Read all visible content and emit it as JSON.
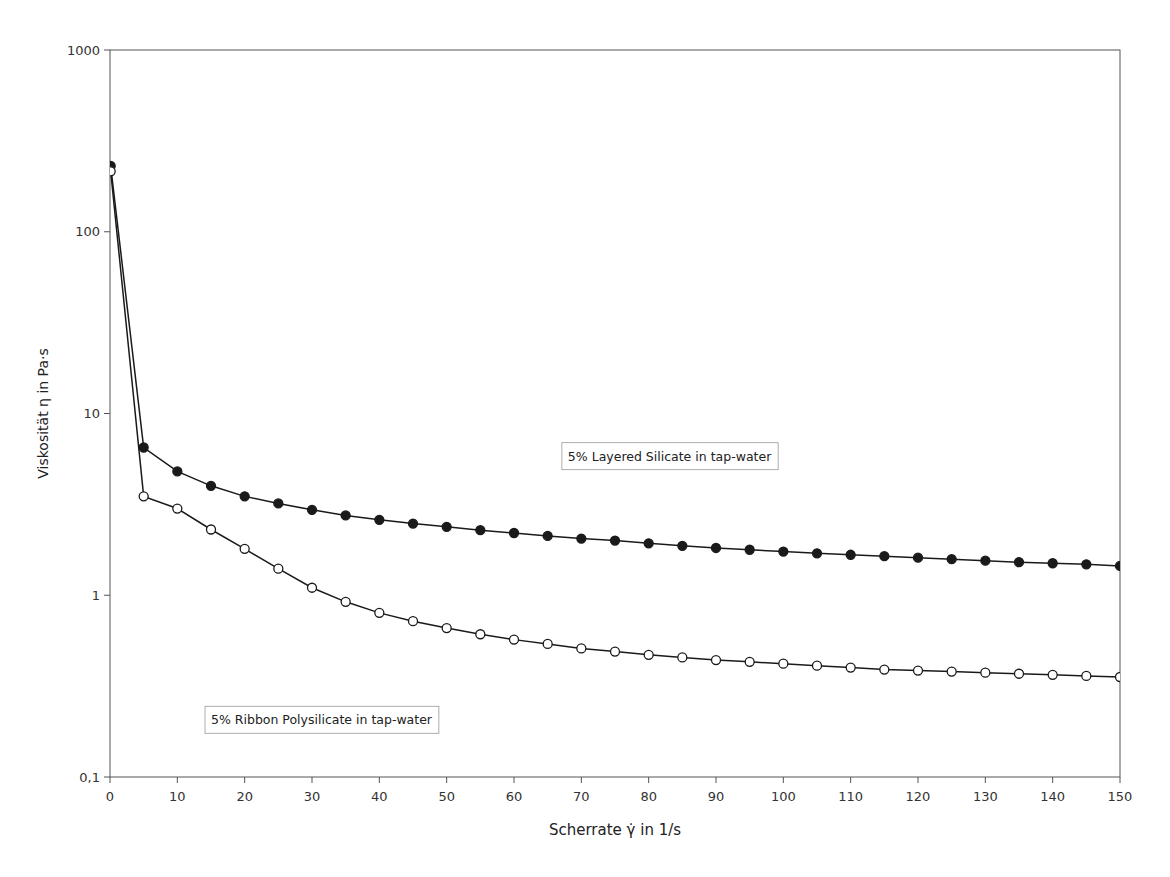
{
  "chart_data": {
    "type": "line",
    "x_label": "Scherrate γ̇ in 1/s",
    "y_label": "Viskosität η in Pa·s",
    "log": "y",
    "grid": false,
    "x": [
      0.1,
      5,
      10,
      15,
      20,
      25,
      30,
      35,
      40,
      45,
      50,
      55,
      60,
      65,
      70,
      75,
      80,
      85,
      90,
      95,
      100,
      105,
      110,
      115,
      120,
      125,
      130,
      135,
      140,
      145,
      150
    ],
    "series": [
      {
        "color": "#1a1a1a",
        "marker": "circle",
        "values": [
          230,
          6.5,
          4.8,
          4.0,
          3.5,
          3.2,
          2.95,
          2.75,
          2.6,
          2.48,
          2.38,
          2.28,
          2.2,
          2.12,
          2.05,
          2.0,
          1.93,
          1.87,
          1.82,
          1.78,
          1.74,
          1.7,
          1.67,
          1.64,
          1.61,
          1.58,
          1.55,
          1.52,
          1.5,
          1.48,
          1.45
        ]
      },
      {
        "color": "#1a1a1a",
        "marker": "circle-open",
        "values": [
          215,
          3.5,
          3.0,
          2.3,
          1.8,
          1.4,
          1.1,
          0.92,
          0.8,
          0.72,
          0.66,
          0.61,
          0.57,
          0.54,
          0.51,
          0.49,
          0.47,
          0.455,
          0.44,
          0.43,
          0.42,
          0.41,
          0.4,
          0.39,
          0.385,
          0.38,
          0.375,
          0.37,
          0.365,
          0.36,
          0.355
        ]
      }
    ],
    "annotations": [
      {
        "text": "5% Layered Silicate in tap-water",
        "x": 68,
        "y": 5.5
      },
      {
        "text": "5% Ribbon Polysilicate in tap-water",
        "x": 15,
        "y": 0.195
      }
    ],
    "xlim": [
      0,
      150
    ],
    "ylim": [
      0.1,
      1000
    ],
    "xticks": [
      0,
      10,
      20,
      30,
      40,
      50,
      60,
      70,
      80,
      90,
      100,
      110,
      120,
      130,
      140,
      150
    ],
    "yticks": [
      {
        "value": 0.1,
        "label": "0,1"
      },
      1,
      10,
      100,
      1000
    ]
  }
}
